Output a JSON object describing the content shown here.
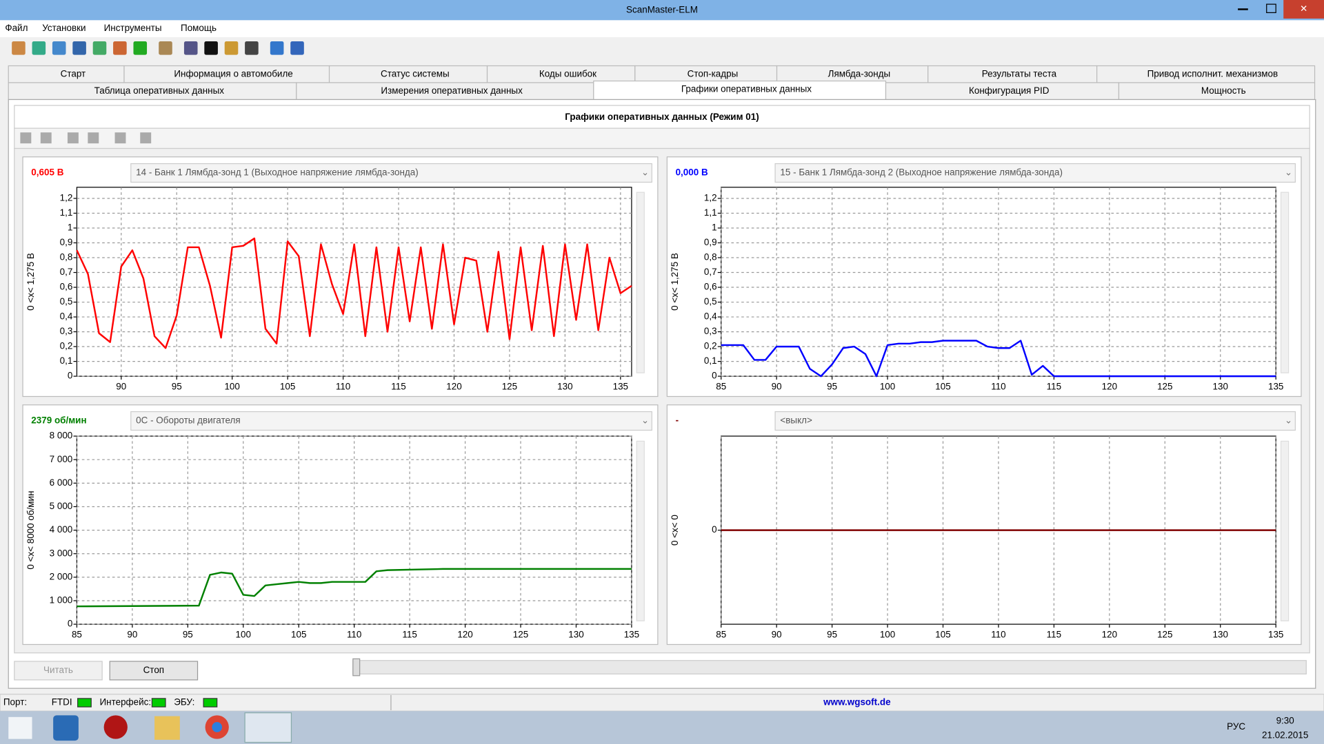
{
  "window": {
    "title": "ScanMaster-ELM"
  },
  "menu": [
    "Файл",
    "Установки",
    "Инструменты",
    "Помощь"
  ],
  "tabs": {
    "row1": [
      "Старт",
      "Информация о автомобиле",
      "Статус системы",
      "Коды ошибок",
      "Стоп-кадры",
      "Лямбда-зонды",
      "Результаты теста",
      "Привод исполнит. механизмов"
    ],
    "row2": [
      "Таблица оперативных данных",
      "Измерения оперативных данных",
      "Графики оперативных данных",
      "Конфигурация PID",
      "Мощность"
    ]
  },
  "panel_title": "Графики оперативных данных (Режим 01)",
  "chart_data": [
    {
      "type": "line",
      "readout": "0,605 В",
      "pid": "14 - Банк 1 Лямбда-зонд 1 (Выходное напряжение лямбда-зонда)",
      "ylabel": "0  <x<  1,275 В",
      "xlim": [
        86,
        136
      ],
      "xticks": [
        90,
        95,
        100,
        105,
        110,
        115,
        120,
        125,
        130,
        135
      ],
      "ylim": [
        0,
        1.275
      ],
      "yticks": [
        0,
        {
          "value": 0.1,
          "label": "0,1"
        },
        {
          "value": 0.2,
          "label": "0,2"
        },
        {
          "value": 0.3,
          "label": "0,3"
        },
        {
          "value": 0.4,
          "label": "0,4"
        },
        {
          "value": 0.5,
          "label": "0,5"
        },
        {
          "value": 0.6,
          "label": "0,6"
        },
        {
          "value": 0.7,
          "label": "0,7"
        },
        {
          "value": 0.8,
          "label": "0,8"
        },
        {
          "value": 0.9,
          "label": "0,9"
        },
        1,
        {
          "value": 1.1,
          "label": "1,1"
        },
        {
          "value": 1.2,
          "label": "1,2"
        }
      ],
      "grid": true,
      "series": [
        {
          "color": "#ff0000",
          "x": [
            86,
            87,
            88,
            89,
            90,
            91,
            92,
            93,
            94,
            95,
            96,
            97,
            98,
            99,
            100,
            101,
            102,
            103,
            104,
            105,
            106,
            107,
            108,
            109,
            110,
            111,
            112,
            113,
            114,
            115,
            116,
            117,
            118,
            119,
            120,
            121,
            122,
            123,
            124,
            125,
            126,
            127,
            128,
            129,
            130,
            131,
            132,
            133,
            134,
            135,
            136
          ],
          "values": [
            0.85,
            0.69,
            0.29,
            0.23,
            0.74,
            0.85,
            0.66,
            0.27,
            0.19,
            0.41,
            0.87,
            0.87,
            0.61,
            0.26,
            0.87,
            0.88,
            0.93,
            0.32,
            0.22,
            0.91,
            0.81,
            0.27,
            0.89,
            0.62,
            0.42,
            0.89,
            0.27,
            0.87,
            0.3,
            0.87,
            0.37,
            0.87,
            0.32,
            0.89,
            0.35,
            0.8,
            0.78,
            0.3,
            0.84,
            0.25,
            0.87,
            0.31,
            0.88,
            0.27,
            0.89,
            0.38,
            0.89,
            0.31,
            0.8,
            0.56,
            0.61
          ]
        }
      ]
    },
    {
      "type": "line",
      "readout": "0,000 В",
      "pid": "15 - Банк 1 Лямбда-зонд 2 (Выходное напряжение лямбда-зонда)",
      "ylabel": "0  <x<  1,275 В",
      "xlim": [
        85,
        135
      ],
      "xticks": [
        85,
        90,
        95,
        100,
        105,
        110,
        115,
        120,
        125,
        130,
        135
      ],
      "ylim": [
        0,
        1.275
      ],
      "yticks": [
        0,
        {
          "value": 0.1,
          "label": "0,1"
        },
        {
          "value": 0.2,
          "label": "0,2"
        },
        {
          "value": 0.3,
          "label": "0,3"
        },
        {
          "value": 0.4,
          "label": "0,4"
        },
        {
          "value": 0.5,
          "label": "0,5"
        },
        {
          "value": 0.6,
          "label": "0,6"
        },
        {
          "value": 0.7,
          "label": "0,7"
        },
        {
          "value": 0.8,
          "label": "0,8"
        },
        {
          "value": 0.9,
          "label": "0,9"
        },
        1,
        {
          "value": 1.1,
          "label": "1,1"
        },
        {
          "value": 1.2,
          "label": "1,2"
        }
      ],
      "grid": true,
      "series": [
        {
          "color": "#0000ff",
          "x": [
            85,
            86,
            87,
            88,
            89,
            90,
            91,
            92,
            93,
            94,
            95,
            96,
            97,
            98,
            99,
            100,
            101,
            102,
            103,
            104,
            105,
            106,
            107,
            108,
            109,
            110,
            111,
            112,
            113,
            114,
            115,
            135
          ],
          "values": [
            0.21,
            0.21,
            0.21,
            0.11,
            0.11,
            0.2,
            0.2,
            0.2,
            0.05,
            0,
            0.08,
            0.19,
            0.2,
            0.15,
            0,
            0.21,
            0.22,
            0.22,
            0.23,
            0.23,
            0.24,
            0.24,
            0.24,
            0.24,
            0.2,
            0.19,
            0.19,
            0.24,
            0.01,
            0.07,
            0,
            0
          ]
        }
      ]
    },
    {
      "type": "line",
      "readout": "2379 об/мин",
      "pid": "0C - Обороты двигателя",
      "ylabel": "0  <x<  8000  об/мин",
      "xlim": [
        85,
        135
      ],
      "xticks": [
        85,
        90,
        95,
        100,
        105,
        110,
        115,
        120,
        125,
        130,
        135
      ],
      "ylim": [
        0,
        8000
      ],
      "yticks": [
        0,
        {
          "value": 1000,
          "label": "1 000"
        },
        {
          "value": 2000,
          "label": "2 000"
        },
        {
          "value": 3000,
          "label": "3 000"
        },
        {
          "value": 4000,
          "label": "4 000"
        },
        {
          "value": 5000,
          "label": "5 000"
        },
        {
          "value": 6000,
          "label": "6 000"
        },
        {
          "value": 7000,
          "label": "7 000"
        },
        {
          "value": 8000,
          "label": "8 000"
        }
      ],
      "grid": true,
      "series": [
        {
          "color": "#008000",
          "x": [
            85,
            96,
            97,
            98,
            99,
            100,
            101,
            102,
            103,
            104,
            105,
            106,
            107,
            108,
            111,
            112,
            113,
            118,
            135
          ],
          "values": [
            760,
            790,
            2100,
            2200,
            2150,
            1250,
            1200,
            1650,
            1700,
            1750,
            1800,
            1750,
            1750,
            1800,
            1800,
            2250,
            2300,
            2350,
            2350
          ]
        }
      ]
    },
    {
      "type": "line",
      "readout": "-",
      "pid": "<выкл>",
      "ylabel": "0  <x<  0",
      "xlim": [
        85,
        135
      ],
      "xticks": [
        85,
        90,
        95,
        100,
        105,
        110,
        115,
        120,
        125,
        130,
        135
      ],
      "ylim": [
        -1,
        1
      ],
      "yticks": [
        0
      ],
      "grid": true,
      "series": [
        {
          "color": "#800000",
          "x": [
            85,
            135
          ],
          "values": [
            0,
            0
          ]
        }
      ]
    }
  ],
  "buttons": [
    "Читать",
    "Стоп"
  ],
  "status": {
    "port": "Порт:",
    "ftdi": "FTDI",
    "interface": "Интерфейс:",
    "ecu": "ЭБУ:",
    "link": "www.wgsoft.de"
  },
  "taskbar": {
    "lang": "РУС",
    "time": "9:30",
    "date": "21.02.2015"
  }
}
